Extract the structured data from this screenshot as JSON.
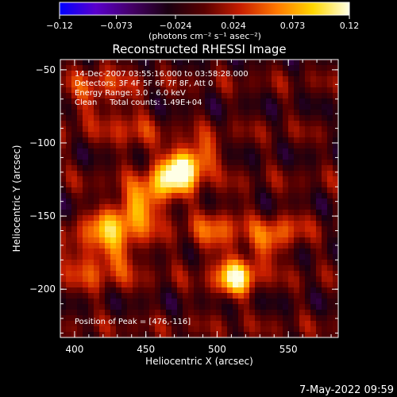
{
  "chart_data": {
    "type": "heatmap",
    "title": "Reconstructed RHESSI Image",
    "xlabel": "Heliocentric X (arcsec)",
    "ylabel": "Heliocentric Y (arcsec)",
    "xlim": [
      390,
      585
    ],
    "ylim": [
      -233,
      -43
    ],
    "x_ticks": [
      "400",
      "450",
      "500",
      "550"
    ],
    "y_ticks": [
      "-50",
      "-100",
      "-150",
      "-200"
    ],
    "colorbar": {
      "range": [
        -0.12,
        0.12
      ],
      "ticks": [
        "-0.12",
        "-0.073",
        "-0.024",
        "0.024",
        "0.073",
        "0.12"
      ],
      "unit_label": "(photons cm⁻² s⁻¹ asec⁻²)",
      "colormap": [
        "#0000ff",
        "#5a00cc",
        "#440066",
        "#1a0010",
        "#5a0000",
        "#c81e00",
        "#ff7800",
        "#ffd700",
        "#ffffe6"
      ]
    },
    "annotations": [
      "14-Dec-2007 03:55:16.000 to 03:58:28.000",
      "Detectors: 3F 4F 5F 6F 7F 8F, Att 0",
      "Energy Range: 3.0 - 6.0 keV",
      "Clean     Total counts: 1.49E+04"
    ],
    "peak_label": "Position of Peak = [476,-116]",
    "peak": [
      476,
      -116
    ],
    "sources": [
      {
        "x": 476,
        "y": -116,
        "amp": 0.12,
        "sx": 14,
        "sy": 9
      },
      {
        "x": 445,
        "y": -142,
        "amp": 0.075,
        "sx": 30,
        "sy": 10
      },
      {
        "x": 425,
        "y": -175,
        "amp": 0.06,
        "sx": 22,
        "sy": 14
      },
      {
        "x": 513,
        "y": -192,
        "amp": 0.11,
        "sx": 11,
        "sy": 9
      },
      {
        "x": 540,
        "y": -165,
        "amp": 0.06,
        "sx": 14,
        "sy": 10
      },
      {
        "x": 500,
        "y": -160,
        "amp": 0.05,
        "sx": 14,
        "sy": 12
      },
      {
        "x": 415,
        "y": -65,
        "amp": 0.04,
        "sx": 18,
        "sy": 14
      },
      {
        "x": 440,
        "y": -92,
        "amp": 0.035,
        "sx": 10,
        "sy": 14
      }
    ]
  },
  "footer": {
    "date": "7-May-2022 09:59"
  }
}
